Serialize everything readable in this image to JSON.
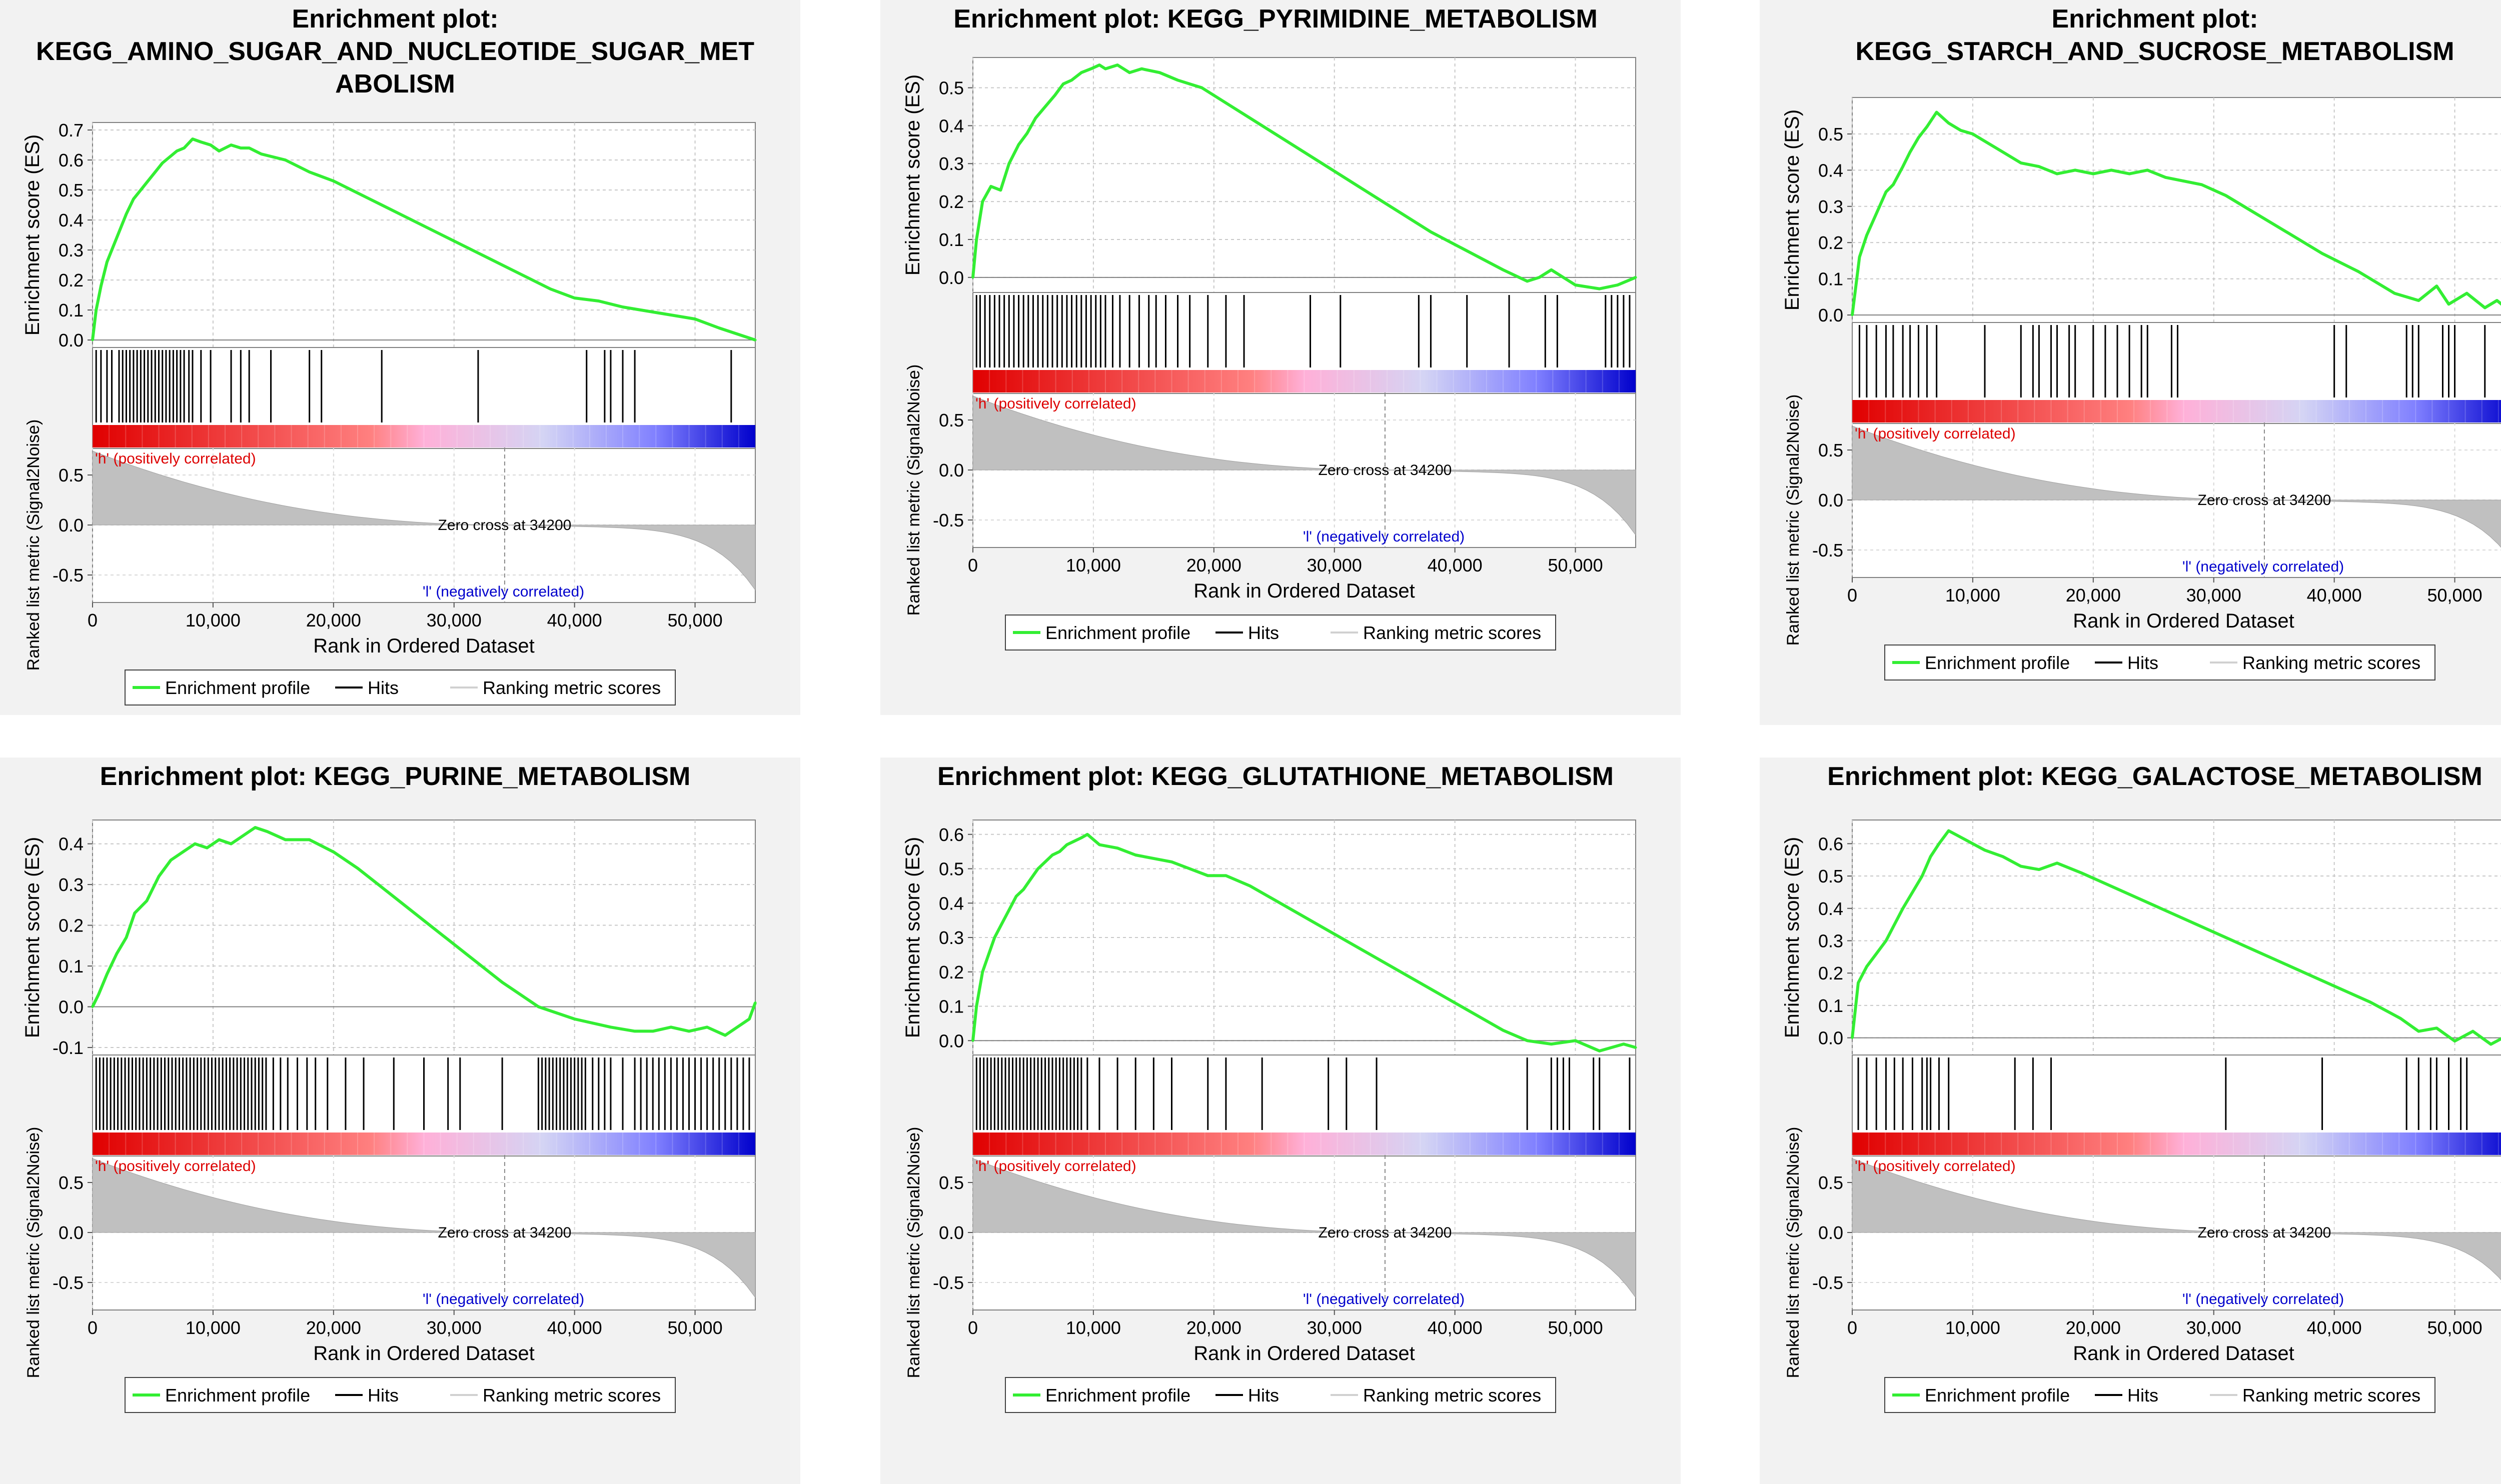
{
  "labels": {
    "es_axis": "Enrichment score (ES)",
    "metric_axis": "Ranked list metric (Signal2Noise)",
    "rank_axis": "Rank in Ordered Dataset",
    "positive": "'h' (positively correlated)",
    "negative": "'l' (negatively correlated)",
    "zero_cross": "Zero cross at 34200",
    "legend_profile": "Enrichment profile",
    "legend_hits": "Hits",
    "legend_ranking": "Ranking metric scores"
  },
  "colors": {
    "profile": "#33ee33",
    "hits": "#000000",
    "metric_fill": "#c0c0c0",
    "positive_text": "#dd0000",
    "negative_text": "#0000cc",
    "panel_bg": "#f2f2f2",
    "gradient": [
      "#e00000",
      "#ff8080",
      "#ffb0d8",
      "#d4d4f4",
      "#8080ff",
      "#0000cc"
    ]
  },
  "chart_data": [
    {
      "type": "line",
      "title_lines": [
        "Enrichment plot:",
        "KEGG_AMINO_SUGAR_AND_NUCLEOTIDE_SUGAR_MET",
        "ABOLISM"
      ],
      "es_ticks": [
        0.0,
        0.1,
        0.2,
        0.3,
        0.4,
        0.5,
        0.6,
        0.7
      ],
      "ylim": [
        0,
        0.7
      ],
      "metric_ticks": [
        0.5,
        0.0,
        -0.5
      ],
      "x_ticks": [
        0,
        10000,
        20000,
        30000,
        40000,
        50000
      ],
      "xlim": [
        0,
        55000
      ],
      "zero_cross": 34200,
      "series": [
        {
          "x": [
            0,
            300,
            700,
            1200,
            1600,
            2200,
            2800,
            3400,
            4000,
            4600,
            5200,
            5800,
            6400,
            7000,
            7600,
            8300,
            9000,
            9800,
            10500,
            11500,
            12300,
            13000,
            14000,
            16000,
            18000,
            20000,
            23000,
            26000,
            29000,
            32000,
            35000,
            38000,
            40000,
            42000,
            44000,
            47000,
            50000,
            52000,
            55000
          ],
          "y": [
            0.0,
            0.1,
            0.18,
            0.26,
            0.3,
            0.36,
            0.42,
            0.47,
            0.5,
            0.53,
            0.56,
            0.59,
            0.61,
            0.63,
            0.64,
            0.67,
            0.66,
            0.65,
            0.63,
            0.65,
            0.64,
            0.64,
            0.62,
            0.6,
            0.56,
            0.53,
            0.47,
            0.41,
            0.35,
            0.29,
            0.23,
            0.17,
            0.14,
            0.13,
            0.11,
            0.09,
            0.07,
            0.04,
            0.0
          ]
        }
      ],
      "hits": [
        300,
        700,
        1200,
        1600,
        2200,
        2500,
        2800,
        3100,
        3400,
        3700,
        4000,
        4300,
        4600,
        4900,
        5200,
        5500,
        5800,
        6100,
        6400,
        6700,
        7000,
        7300,
        7600,
        8000,
        8300,
        9000,
        9800,
        11500,
        12300,
        13000,
        14800,
        18000,
        19000,
        24000,
        32000,
        41000,
        42500,
        43000,
        44000,
        45000,
        53000
      ]
    },
    {
      "type": "line",
      "title_lines": [
        "Enrichment plot: KEGG_PYRIMIDINE_METABOLISM"
      ],
      "es_ticks": [
        0.0,
        0.1,
        0.2,
        0.3,
        0.4,
        0.5
      ],
      "ylim": [
        -0.02,
        0.56
      ],
      "metric_ticks": [
        0.5,
        0.0,
        -0.5
      ],
      "x_ticks": [
        0,
        10000,
        20000,
        30000,
        40000,
        50000
      ],
      "xlim": [
        0,
        55000
      ],
      "zero_cross": 34200,
      "series": [
        {
          "x": [
            0,
            300,
            800,
            1500,
            2300,
            3000,
            3800,
            4500,
            5200,
            6000,
            6800,
            7500,
            8200,
            9000,
            9800,
            10500,
            11000,
            12000,
            13000,
            14000,
            15500,
            17000,
            19000,
            21000,
            23000,
            26000,
            29000,
            32000,
            35000,
            38000,
            41000,
            44000,
            46000,
            47000,
            48000,
            50000,
            52000,
            53500,
            55000
          ],
          "y": [
            0.0,
            0.1,
            0.2,
            0.24,
            0.23,
            0.3,
            0.35,
            0.38,
            0.42,
            0.45,
            0.48,
            0.51,
            0.52,
            0.54,
            0.55,
            0.56,
            0.55,
            0.56,
            0.54,
            0.55,
            0.54,
            0.52,
            0.5,
            0.46,
            0.42,
            0.36,
            0.3,
            0.24,
            0.18,
            0.12,
            0.07,
            0.02,
            -0.01,
            0.0,
            0.02,
            -0.02,
            -0.03,
            -0.02,
            0.0
          ]
        }
      ],
      "hits": [
        300,
        600,
        1000,
        1400,
        1800,
        2200,
        2600,
        3000,
        3400,
        3800,
        4200,
        4600,
        5000,
        5400,
        5800,
        6200,
        6600,
        7000,
        7400,
        7800,
        8200,
        8600,
        9000,
        9400,
        9800,
        10200,
        10600,
        11000,
        11600,
        12200,
        13000,
        13800,
        14600,
        15200,
        16000,
        17000,
        18000,
        19500,
        21000,
        22500,
        28000,
        30500,
        37000,
        38000,
        41000,
        44500,
        47500,
        48500,
        52500,
        53000,
        53500,
        54000,
        54500
      ]
    },
    {
      "type": "line",
      "title_lines": [
        "Enrichment plot:",
        "KEGG_STARCH_AND_SUCROSE_METABOLISM"
      ],
      "es_ticks": [
        0.0,
        0.1,
        0.2,
        0.3,
        0.4,
        0.5
      ],
      "ylim": [
        0,
        0.58
      ],
      "metric_ticks": [
        0.5,
        0.0,
        -0.5
      ],
      "x_ticks": [
        0,
        10000,
        20000,
        30000,
        40000,
        50000
      ],
      "xlim": [
        0,
        55000
      ],
      "zero_cross": 34200,
      "series": [
        {
          "x": [
            0,
            600,
            1200,
            2000,
            2800,
            3400,
            4200,
            4800,
            5500,
            6200,
            7000,
            8000,
            9000,
            10000,
            11000,
            12500,
            14000,
            15500,
            17000,
            18500,
            20000,
            21500,
            23000,
            24500,
            26000,
            27500,
            29000,
            31000,
            33000,
            36000,
            39000,
            42000,
            45000,
            47000,
            48500,
            49500,
            51000,
            52500,
            53500,
            55000
          ],
          "y": [
            0.0,
            0.16,
            0.22,
            0.28,
            0.34,
            0.36,
            0.41,
            0.45,
            0.49,
            0.52,
            0.56,
            0.53,
            0.51,
            0.5,
            0.48,
            0.45,
            0.42,
            0.41,
            0.39,
            0.4,
            0.39,
            0.4,
            0.39,
            0.4,
            0.38,
            0.37,
            0.36,
            0.33,
            0.29,
            0.23,
            0.17,
            0.12,
            0.06,
            0.04,
            0.08,
            0.03,
            0.06,
            0.02,
            0.04,
            0.0
          ]
        }
      ],
      "hits": [
        600,
        1200,
        2000,
        2800,
        3400,
        4200,
        4800,
        5500,
        6200,
        7000,
        11000,
        14000,
        15000,
        15500,
        16500,
        17000,
        18000,
        18500,
        20000,
        21000,
        22000,
        23000,
        24000,
        24500,
        26500,
        27000,
        40000,
        41000,
        46000,
        46500,
        47000,
        49000,
        49500,
        50000,
        52500
      ]
    },
    {
      "type": "line",
      "title_lines": [
        "Enrichment plot: KEGG_PURINE_METABOLISM"
      ],
      "es_ticks": [
        -0.1,
        0.0,
        0.1,
        0.2,
        0.3,
        0.4
      ],
      "ylim": [
        -0.1,
        0.44
      ],
      "metric_ticks": [
        0.5,
        0.0,
        -0.5
      ],
      "x_ticks": [
        0,
        10000,
        20000,
        30000,
        40000,
        50000
      ],
      "xlim": [
        0,
        55000
      ],
      "zero_cross": 34200,
      "series": [
        {
          "x": [
            0,
            500,
            1200,
            2000,
            2800,
            3500,
            4500,
            5500,
            6500,
            7500,
            8500,
            9500,
            10500,
            11500,
            12500,
            13500,
            14500,
            16000,
            18000,
            20000,
            22000,
            25000,
            28000,
            31000,
            34000,
            37000,
            40000,
            43000,
            45000,
            46500,
            48000,
            49500,
            51000,
            52500,
            53500,
            54500,
            55000
          ],
          "y": [
            0.0,
            0.03,
            0.08,
            0.13,
            0.17,
            0.23,
            0.26,
            0.32,
            0.36,
            0.38,
            0.4,
            0.39,
            0.41,
            0.4,
            0.42,
            0.44,
            0.43,
            0.41,
            0.41,
            0.38,
            0.34,
            0.27,
            0.2,
            0.13,
            0.06,
            0.0,
            -0.03,
            -0.05,
            -0.06,
            -0.06,
            -0.05,
            -0.06,
            -0.05,
            -0.07,
            -0.05,
            -0.03,
            0.01
          ]
        }
      ],
      "hits": [
        300,
        600,
        900,
        1200,
        1500,
        1800,
        2100,
        2400,
        2700,
        3000,
        3300,
        3600,
        3900,
        4200,
        4500,
        4800,
        5100,
        5400,
        5700,
        6000,
        6300,
        6600,
        6900,
        7200,
        7500,
        7800,
        8100,
        8400,
        8700,
        9000,
        9300,
        9600,
        9900,
        10200,
        10500,
        10800,
        11100,
        11400,
        11700,
        12000,
        12300,
        12600,
        12900,
        13200,
        13500,
        13800,
        14100,
        14400,
        15000,
        15600,
        16200,
        17000,
        17800,
        18500,
        19500,
        21000,
        22500,
        25000,
        27500,
        29500,
        30500,
        34000,
        37000,
        37300,
        37600,
        37900,
        38200,
        38500,
        38800,
        39100,
        39400,
        39700,
        40000,
        40300,
        40600,
        40900,
        41500,
        42000,
        42500,
        43000,
        44000,
        45000,
        45500,
        46000,
        46500,
        47000,
        47500,
        48000,
        48500,
        49000,
        49500,
        50000,
        50500,
        51000,
        51500,
        52000,
        52500,
        53000,
        53500,
        54000,
        54500
      ]
    },
    {
      "type": "line",
      "title_lines": [
        "Enrichment plot: KEGG_GLUTATHIONE_METABOLISM"
      ],
      "es_ticks": [
        0.0,
        0.1,
        0.2,
        0.3,
        0.4,
        0.5,
        0.6
      ],
      "ylim": [
        -0.02,
        0.62
      ],
      "metric_ticks": [
        0.5,
        0.0,
        -0.5
      ],
      "x_ticks": [
        0,
        10000,
        20000,
        30000,
        40000,
        50000
      ],
      "xlim": [
        0,
        55000
      ],
      "zero_cross": 34200,
      "series": [
        {
          "x": [
            0,
            300,
            800,
            1300,
            1800,
            2400,
            3000,
            3600,
            4200,
            4800,
            5400,
            6000,
            6600,
            7200,
            7800,
            8400,
            9000,
            9500,
            10500,
            12000,
            13500,
            15000,
            16500,
            18000,
            19500,
            21000,
            23000,
            26000,
            29000,
            32000,
            35000,
            38000,
            41000,
            44000,
            46000,
            48000,
            50000,
            52000,
            54000,
            55000
          ],
          "y": [
            0.0,
            0.1,
            0.2,
            0.25,
            0.3,
            0.34,
            0.38,
            0.42,
            0.44,
            0.47,
            0.5,
            0.52,
            0.54,
            0.55,
            0.57,
            0.58,
            0.59,
            0.6,
            0.57,
            0.56,
            0.54,
            0.53,
            0.52,
            0.5,
            0.48,
            0.48,
            0.45,
            0.39,
            0.33,
            0.27,
            0.21,
            0.15,
            0.09,
            0.03,
            0.0,
            -0.01,
            0.0,
            -0.03,
            -0.01,
            -0.02
          ]
        }
      ],
      "hits": [
        300,
        600,
        900,
        1200,
        1500,
        1800,
        2100,
        2400,
        2700,
        3000,
        3300,
        3600,
        3900,
        4200,
        4500,
        4800,
        5100,
        5400,
        5700,
        6000,
        6300,
        6600,
        6900,
        7200,
        7500,
        7800,
        8100,
        8400,
        8700,
        9000,
        9500,
        10500,
        12000,
        13500,
        15000,
        16500,
        19500,
        21000,
        24000,
        29500,
        31000,
        33500,
        46000,
        48000,
        48500,
        49000,
        49500,
        51500,
        52000,
        54500
      ]
    },
    {
      "type": "line",
      "title_lines": [
        "Enrichment plot: KEGG_GALACTOSE_METABOLISM"
      ],
      "es_ticks": [
        0.0,
        0.1,
        0.2,
        0.3,
        0.4,
        0.5,
        0.6
      ],
      "ylim": [
        -0.03,
        0.65
      ],
      "metric_ticks": [
        0.5,
        0.0,
        -0.5
      ],
      "x_ticks": [
        0,
        10000,
        20000,
        30000,
        40000,
        50000
      ],
      "xlim": [
        0,
        55000
      ],
      "zero_cross": 34200,
      "series": [
        {
          "x": [
            0,
            500,
            1200,
            2000,
            2800,
            3500,
            4200,
            5000,
            5800,
            6500,
            7200,
            8000,
            9000,
            10000,
            11000,
            12500,
            14000,
            15500,
            17000,
            19000,
            22000,
            25000,
            28000,
            31000,
            34000,
            37000,
            40000,
            43000,
            45500,
            47000,
            48500,
            50000,
            51500,
            53000,
            54000,
            55000
          ],
          "y": [
            0.0,
            0.17,
            0.22,
            0.26,
            0.3,
            0.35,
            0.4,
            0.45,
            0.5,
            0.56,
            0.6,
            0.64,
            0.62,
            0.6,
            0.58,
            0.56,
            0.53,
            0.52,
            0.54,
            0.51,
            0.46,
            0.41,
            0.36,
            0.31,
            0.26,
            0.21,
            0.16,
            0.11,
            0.06,
            0.02,
            0.03,
            -0.01,
            0.02,
            -0.02,
            0.0,
            -0.03
          ]
        }
      ],
      "hits": [
        500,
        1200,
        2000,
        2800,
        3500,
        4200,
        5000,
        5800,
        6200,
        6500,
        7200,
        8000,
        13500,
        15000,
        16500,
        31000,
        39000,
        46000,
        47000,
        48000,
        48500,
        49500,
        50500,
        51000,
        54000
      ]
    }
  ]
}
